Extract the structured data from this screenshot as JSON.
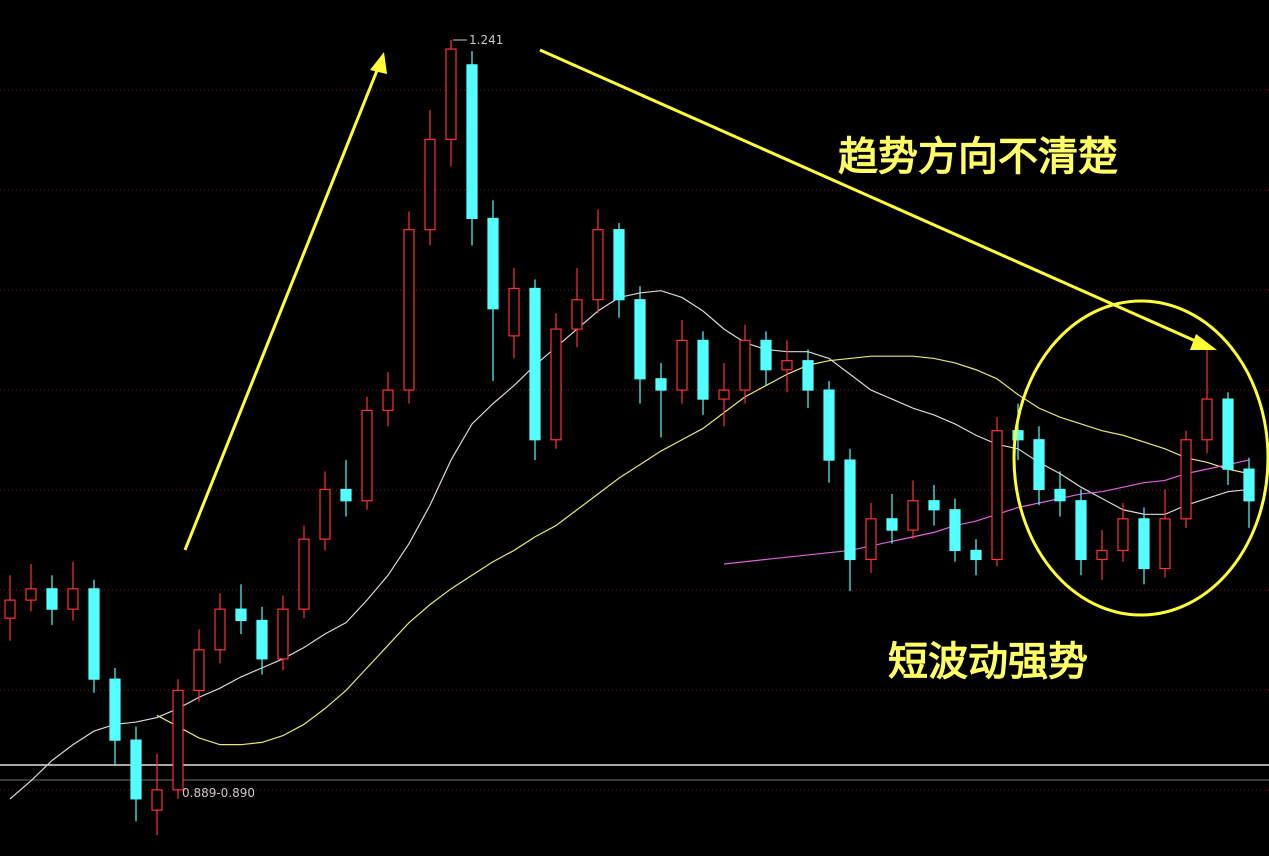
{
  "chart_data": {
    "type": "candlestick",
    "up_color": "#ff3232",
    "down_color": "#54ffff",
    "open": [
      0.985,
      0.993,
      0.998,
      0.989,
      0.998,
      0.958,
      0.931,
      0.9,
      0.909,
      0.953,
      0.971,
      0.989,
      0.984,
      0.967,
      0.989,
      1.02,
      1.042,
      1.037,
      1.077,
      1.086,
      1.157,
      1.197,
      1.23,
      1.162,
      1.11,
      1.131,
      1.064,
      1.113,
      1.126,
      1.157,
      1.126,
      1.091,
      1.086,
      1.108,
      1.082,
      1.086,
      1.108,
      1.095,
      1.099,
      1.086,
      1.055,
      1.011,
      1.029,
      1.024,
      1.037,
      1.033,
      1.015,
      1.011,
      1.068,
      1.064,
      1.042,
      1.037,
      1.011,
      1.015,
      1.029,
      1.007,
      1.029,
      1.064,
      1.082,
      1.051
    ],
    "high": [
      1.004,
      1.009,
      1.004,
      1.01,
      1.002,
      0.963,
      0.937,
      0.925,
      0.958,
      0.98,
      0.996,
      1.0,
      0.99,
      0.995,
      1.026,
      1.05,
      1.055,
      1.083,
      1.094,
      1.165,
      1.21,
      1.241,
      1.236,
      1.17,
      1.14,
      1.135,
      1.12,
      1.14,
      1.166,
      1.16,
      1.132,
      1.098,
      1.117,
      1.112,
      1.098,
      1.115,
      1.112,
      1.108,
      1.104,
      1.09,
      1.06,
      1.036,
      1.04,
      1.046,
      1.044,
      1.038,
      1.02,
      1.074,
      1.08,
      1.07,
      1.05,
      1.042,
      1.024,
      1.036,
      1.034,
      1.042,
      1.068,
      1.104,
      1.085,
      1.056
    ],
    "low": [
      0.975,
      0.988,
      0.982,
      0.984,
      0.952,
      0.92,
      0.895,
      0.889,
      0.905,
      0.948,
      0.965,
      0.978,
      0.96,
      0.962,
      0.985,
      1.015,
      1.03,
      1.033,
      1.07,
      1.08,
      1.15,
      1.185,
      1.15,
      1.09,
      1.1,
      1.055,
      1.06,
      1.105,
      1.12,
      1.118,
      1.08,
      1.065,
      1.08,
      1.075,
      1.07,
      1.08,
      1.088,
      1.085,
      1.078,
      1.045,
      0.997,
      1.005,
      1.018,
      1.02,
      1.026,
      1.01,
      1.004,
      1.008,
      1.055,
      1.035,
      1.03,
      1.004,
      1.002,
      1.01,
      1.0,
      1.003,
      1.025,
      1.058,
      1.044,
      1.025
    ],
    "close": [
      0.993,
      0.998,
      0.989,
      0.998,
      0.958,
      0.931,
      0.905,
      0.909,
      0.953,
      0.971,
      0.989,
      0.984,
      0.967,
      0.989,
      1.02,
      1.042,
      1.037,
      1.077,
      1.086,
      1.157,
      1.197,
      1.237,
      1.162,
      1.122,
      1.131,
      1.064,
      1.113,
      1.126,
      1.157,
      1.126,
      1.091,
      1.086,
      1.108,
      1.082,
      1.086,
      1.108,
      1.095,
      1.099,
      1.086,
      1.055,
      1.011,
      1.029,
      1.024,
      1.037,
      1.033,
      1.015,
      1.011,
      1.068,
      1.064,
      1.042,
      1.037,
      1.011,
      1.015,
      1.029,
      1.007,
      1.029,
      1.064,
      1.082,
      1.051,
      1.037
    ],
    "lines": [
      {
        "color": "#d8d8d8",
        "values": [
          0.905,
          0.913,
          0.922,
          0.929,
          0.935,
          0.938,
          0.939,
          0.941,
          0.945,
          0.95,
          0.954,
          0.959,
          0.963,
          0.967,
          0.972,
          0.978,
          0.983,
          0.993,
          1.004,
          1.018,
          1.035,
          1.055,
          1.071,
          1.08,
          1.088,
          1.097,
          1.105,
          1.113,
          1.121,
          1.127,
          1.129,
          1.13,
          1.127,
          1.121,
          1.113,
          1.107,
          1.104,
          1.103,
          1.103,
          1.1,
          1.093,
          1.086,
          1.082,
          1.078,
          1.075,
          1.071,
          1.066,
          1.062,
          1.06,
          1.054,
          1.049,
          1.043,
          1.038,
          1.033,
          1.031,
          1.031,
          1.035,
          1.038,
          1.041,
          1.042
        ]
      },
      {
        "color": "#e6e67a",
        "values": [
          null,
          null,
          null,
          null,
          null,
          null,
          null,
          0.942,
          0.937,
          0.932,
          0.929,
          0.929,
          0.93,
          0.933,
          0.938,
          0.945,
          0.953,
          0.963,
          0.973,
          0.983,
          0.991,
          0.998,
          1.004,
          1.01,
          1.015,
          1.021,
          1.026,
          1.033,
          1.04,
          1.047,
          1.053,
          1.059,
          1.064,
          1.069,
          1.076,
          1.083,
          1.088,
          1.093,
          1.097,
          1.099,
          1.1,
          1.101,
          1.101,
          1.101,
          1.1,
          1.098,
          1.095,
          1.091,
          1.084,
          1.078,
          1.074,
          1.071,
          1.068,
          1.066,
          1.063,
          1.06,
          1.056,
          1.054,
          1.051,
          1.049
        ]
      },
      {
        "color": "#e060e0",
        "values": [
          null,
          null,
          null,
          null,
          null,
          null,
          null,
          null,
          null,
          null,
          null,
          null,
          null,
          null,
          null,
          null,
          null,
          null,
          null,
          null,
          null,
          null,
          null,
          null,
          null,
          null,
          null,
          null,
          null,
          null,
          null,
          null,
          null,
          null,
          1.009,
          1.01,
          1.011,
          1.012,
          1.013,
          1.014,
          1.015,
          1.017,
          1.019,
          1.021,
          1.023,
          1.026,
          1.028,
          1.031,
          1.034,
          1.036,
          1.038,
          1.04,
          1.041,
          1.043,
          1.045,
          1.046,
          1.049,
          1.051,
          1.053,
          1.055
        ]
      }
    ],
    "high_label": "1.241",
    "low_label": "0.889-0.890",
    "annotations": [
      "趋势方向不清楚",
      "短波动强势"
    ]
  }
}
